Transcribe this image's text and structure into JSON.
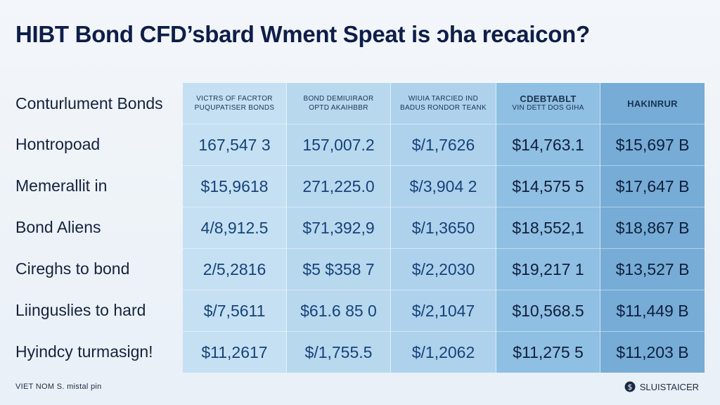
{
  "title": "HIBT Bond CFD’sbard Wment Speat is ɔha recaicon?",
  "header_label": "Conturlument Bonds",
  "columns": [
    {
      "line1": "VICTRS OF FACRTOR",
      "line2": "PUQUPATISER BONDS",
      "bg": "#c5e0f2"
    },
    {
      "line1": "BOND DEMIUIRAOR",
      "line2": "OPTD AKAIHBBR",
      "bg": "#b8d8ee"
    },
    {
      "line1": "WIUIA TARCIED IND",
      "line2": "BADUS RONDOR TEANK",
      "bg": "#aed2ec"
    },
    {
      "line1": "CDEBTABLT",
      "line2": "VIN DETT DOS GIHA",
      "bg": "#8fbfe2"
    },
    {
      "line1": "HAKINRUR",
      "line2": "",
      "bg": "#76acd6"
    }
  ],
  "rows": [
    {
      "label": "Hontropoad",
      "values": [
        "167,547 3",
        "157,007.2",
        "$/1,7626",
        "$14,763.1",
        "$15,697 B"
      ]
    },
    {
      "label": "Memerallit in",
      "values": [
        "$15,9618",
        "271,225.0",
        "$/3,904 2",
        "$14,575 5",
        "$17,647 B"
      ]
    },
    {
      "label": "Bond Aliens",
      "values": [
        "4/8,912.5",
        "$71,392,9",
        "$/1,3650",
        "$18,552,1",
        "$18,867 B"
      ]
    },
    {
      "label": "Cireghs to bond",
      "values": [
        "2/5,2816",
        "$5 $358 7",
        "$/2,2030",
        "$19,217 1",
        "$13,527 B"
      ]
    },
    {
      "label": "Liinguslies to hard",
      "values": [
        "$/7,5611",
        "$61.6 85 0",
        "$/2,1047",
        "$10,568.5",
        "$11,449 B"
      ]
    },
    {
      "label": "Hyindcy turmasign!",
      "values": [
        "$11,2617",
        "$/1,755.5",
        "$/1,2062",
        "$11,275 5",
        "$11,203 B"
      ]
    }
  ],
  "footer": {
    "left": "VIET NOM S. mistal pin",
    "right": "SLUISTAICER"
  }
}
